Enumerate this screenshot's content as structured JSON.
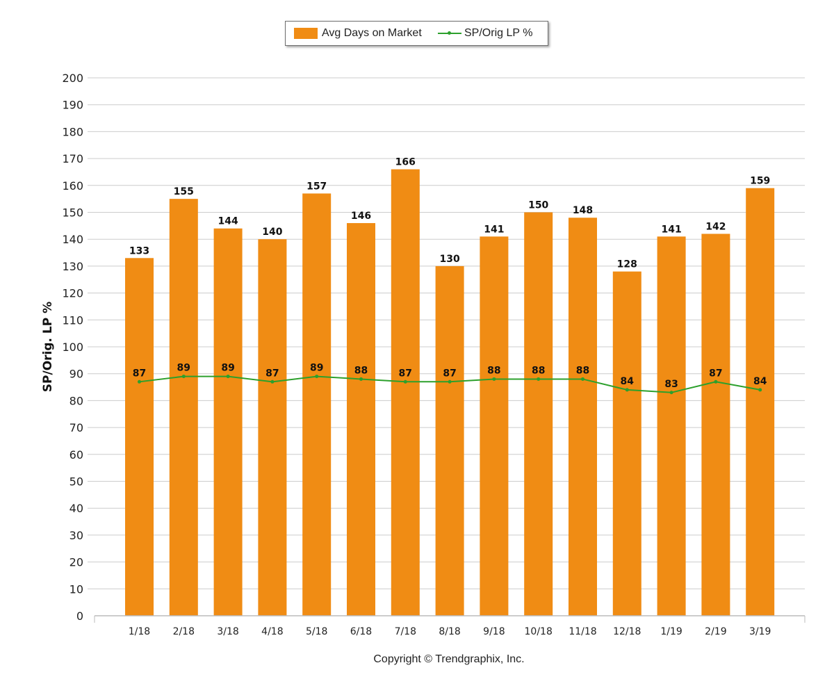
{
  "legend": {
    "bar_label": "Avg Days on Market",
    "line_label": "SP/Orig LP %"
  },
  "copyright": "Copyright © Trendgraphix, Inc.",
  "chart_data": {
    "type": "bar",
    "categories": [
      "1/18",
      "2/18",
      "3/18",
      "4/18",
      "5/18",
      "6/18",
      "7/18",
      "8/18",
      "9/18",
      "10/18",
      "11/18",
      "12/18",
      "1/19",
      "2/19",
      "3/19"
    ],
    "series": [
      {
        "name": "Avg Days on Market",
        "type": "bar",
        "color": "#F08C14",
        "values": [
          133,
          155,
          144,
          140,
          157,
          146,
          166,
          130,
          141,
          150,
          148,
          128,
          141,
          142,
          159
        ]
      },
      {
        "name": "SP/Orig LP %",
        "type": "line",
        "color": "#2ca02c",
        "values": [
          87,
          89,
          89,
          87,
          89,
          88,
          87,
          87,
          88,
          88,
          88,
          84,
          83,
          87,
          84
        ]
      }
    ],
    "ylabel": "SP/Orig. LP %",
    "xlabel": "",
    "ylim": [
      0,
      200
    ],
    "yticks": [
      0,
      10,
      20,
      30,
      40,
      50,
      60,
      70,
      80,
      90,
      100,
      110,
      120,
      130,
      140,
      150,
      160,
      170,
      180,
      190,
      200
    ],
    "grid": true,
    "legend_position": "top-center"
  }
}
